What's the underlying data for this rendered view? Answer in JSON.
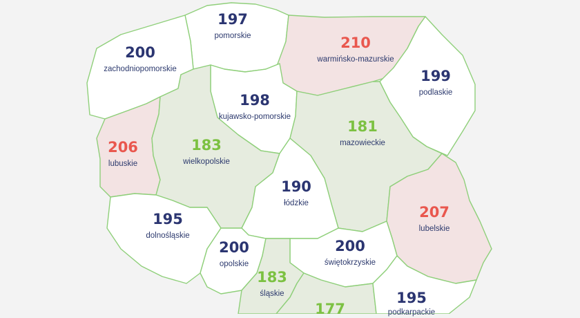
{
  "colors": {
    "navy": "#2b3571",
    "green": "#7cc142",
    "red": "#e9574e"
  },
  "regions": [
    {
      "id": "pomorskie",
      "value": "197",
      "name": "pomorskie",
      "status": "navy"
    },
    {
      "id": "zachodniopomorskie",
      "value": "200",
      "name": "zachodniopomorskie",
      "status": "navy"
    },
    {
      "id": "warminsko-mazurskie",
      "value": "210",
      "name": "warmińsko-mazurskie",
      "status": "red"
    },
    {
      "id": "podlaskie",
      "value": "199",
      "name": "podlaskie",
      "status": "navy"
    },
    {
      "id": "kujawsko-pomorskie",
      "value": "198",
      "name": "kujawsko-pomorskie",
      "status": "navy"
    },
    {
      "id": "mazowieckie",
      "value": "181",
      "name": "mazowieckie",
      "status": "green"
    },
    {
      "id": "lubuskie",
      "value": "206",
      "name": "lubuskie",
      "status": "red"
    },
    {
      "id": "wielkopolskie",
      "value": "183",
      "name": "wielkopolskie",
      "status": "green"
    },
    {
      "id": "lodzkie",
      "value": "190",
      "name": "łódzkie",
      "status": "navy"
    },
    {
      "id": "lubelskie",
      "value": "207",
      "name": "lubelskie",
      "status": "red"
    },
    {
      "id": "dolnoslaskie",
      "value": "195",
      "name": "dolnośląskie",
      "status": "navy"
    },
    {
      "id": "opolskie",
      "value": "200",
      "name": "opolskie",
      "status": "navy"
    },
    {
      "id": "swietokrzyskie",
      "value": "200",
      "name": "świętokrzyskie",
      "status": "navy"
    },
    {
      "id": "slaskie",
      "value": "183",
      "name": "śląskie",
      "status": "green"
    },
    {
      "id": "malopolskie",
      "value": "177",
      "name": "",
      "status": "green"
    },
    {
      "id": "podkarpackie",
      "value": "195",
      "name": "podkarpackie",
      "status": "navy"
    }
  ]
}
